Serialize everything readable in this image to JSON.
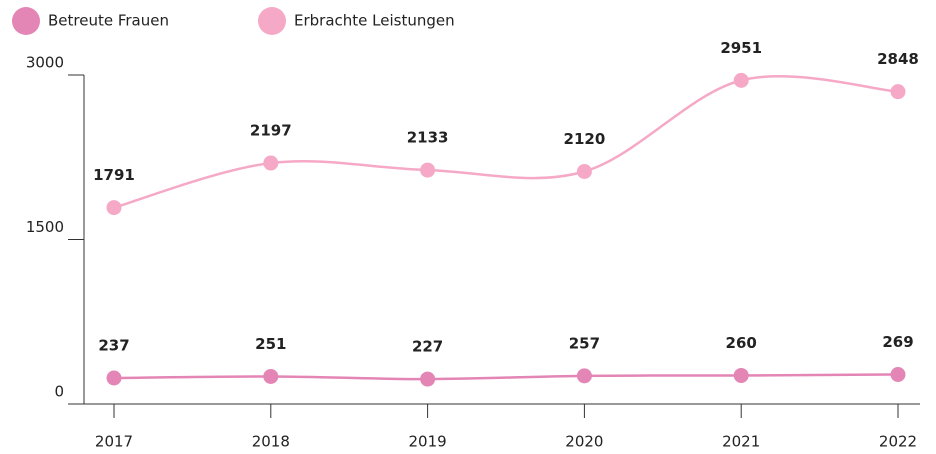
{
  "chart_data": {
    "type": "line",
    "categories": [
      "2017",
      "2018",
      "2019",
      "2020",
      "2021",
      "2022"
    ],
    "series": [
      {
        "name": "Betreute Frauen",
        "color": "#e486b5",
        "values": [
          237,
          251,
          227,
          257,
          260,
          269
        ]
      },
      {
        "name": "Erbrachte Leistungen",
        "color": "#f5a9c7",
        "values": [
          1791,
          2197,
          2133,
          2120,
          2951,
          2848
        ]
      }
    ],
    "ylim": [
      0,
      3000
    ],
    "yticks": [
      0,
      1500,
      3000
    ],
    "smooth": true
  }
}
